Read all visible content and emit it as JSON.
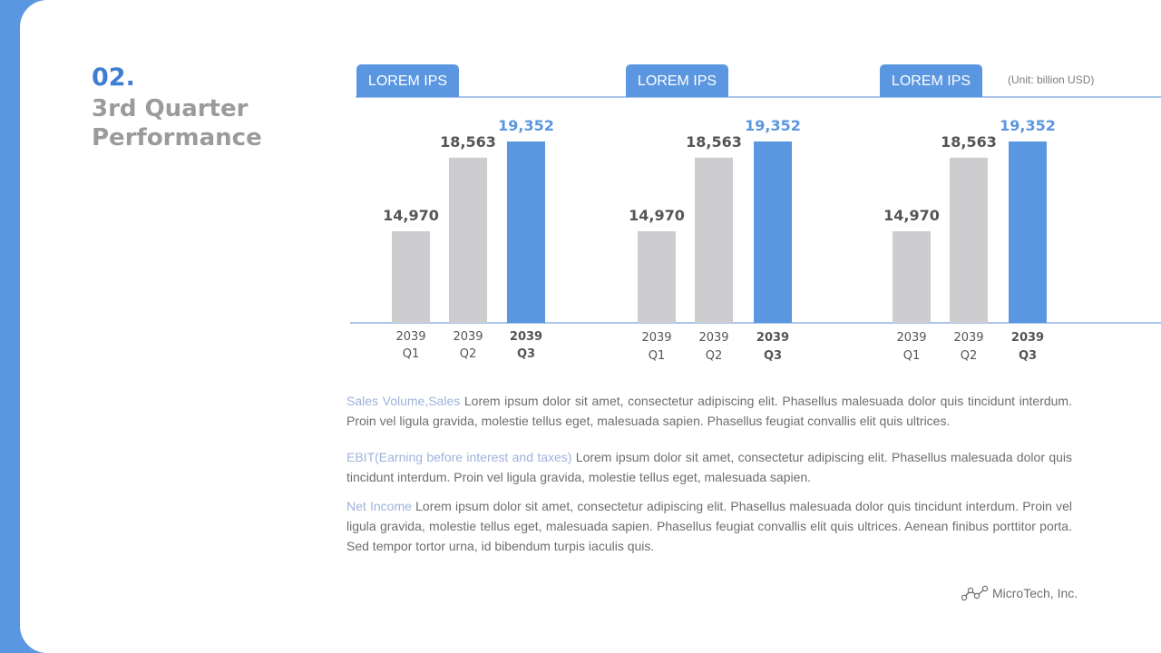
{
  "section": {
    "number": "02.",
    "title": "3rd Quarter Performance"
  },
  "unit_note": "(Unit: billion USD)",
  "paragraphs": [
    {
      "lead": "Sales Volume,Sales",
      "text": " Lorem ipsum dolor sit amet, consectetur adipiscing elit. Phasellus malesuada dolor quis tincidunt interdum. Proin vel ligula gravida, molestie tellus eget, malesuada sapien. Phasellus feugiat convallis elit quis ultrices."
    },
    {
      "lead": "EBIT(Earning before interest and taxes)",
      "text": " Lorem ipsum dolor sit amet, consectetur adipiscing elit. Phasellus malesuada dolor quis tincidunt interdum. Proin vel ligula gravida, molestie tellus eget, malesuada sapien."
    },
    {
      "lead": "Net Income",
      "text": " Lorem ipsum dolor sit amet, consectetur adipiscing elit. Phasellus malesuada dolor quis tincidunt interdum. Proin vel ligula gravida, molestie tellus eget, malesuada sapien. Phasellus feugiat convallis elit quis ultrices. Aenean finibus porttitor porta. Sed tempor tortor urna, id bibendum turpis iaculis quis."
    }
  ],
  "logo": {
    "icon": "chart-line-icon",
    "text": "MicroTech, Inc."
  },
  "colors": {
    "accent": "#5b96e0",
    "bar_default": "#cdcdcf",
    "label_default": "#555555",
    "axis": "#8fb2e3"
  },
  "chart_data": [
    {
      "type": "bar",
      "title": "LOREM IPS",
      "categories": [
        "2039 Q1",
        "2039 Q2",
        "2039 Q3"
      ],
      "values": [
        14970,
        18563,
        19352
      ],
      "value_labels": [
        "14,970",
        "18,563",
        "19,352"
      ],
      "highlight_index": 2,
      "ylim": [
        10500,
        19352
      ]
    },
    {
      "type": "bar",
      "title": "LOREM IPS",
      "categories": [
        "2039 Q1",
        "2039 Q2",
        "2039 Q3"
      ],
      "values": [
        14970,
        18563,
        19352
      ],
      "value_labels": [
        "14,970",
        "18,563",
        "19,352"
      ],
      "highlight_index": 2,
      "ylim": [
        10500,
        19352
      ]
    },
    {
      "type": "bar",
      "title": "LOREM IPS",
      "categories": [
        "2039 Q1",
        "2039 Q2",
        "2039 Q3"
      ],
      "values": [
        14970,
        18563,
        19352
      ],
      "value_labels": [
        "14,970",
        "18,563",
        "19,352"
      ],
      "highlight_index": 2,
      "ylim": [
        10500,
        19352
      ]
    }
  ]
}
